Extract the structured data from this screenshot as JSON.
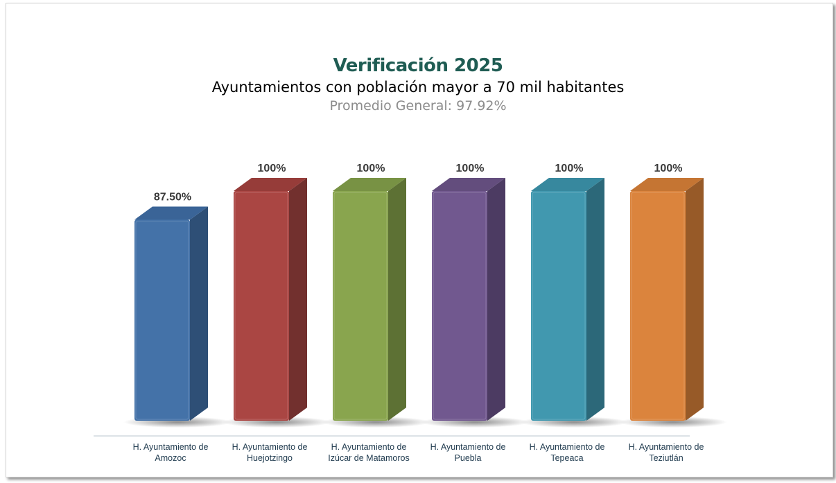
{
  "chart_data": {
    "type": "bar",
    "title": "Verificación 2025",
    "subtitle": "Ayuntamientos con población mayor a 70 mil habitantes",
    "note": "Promedio General: 97.92%",
    "categories": [
      "H. Ayuntamiento de Amozoc",
      "H. Ayuntamiento de Huejotzingo",
      "H. Ayuntamiento de Izúcar de Matamoros",
      "H. Ayuntamiento de Puebla",
      "H. Ayuntamiento de Tepeaca",
      "H. Ayuntamiento de Teziutlán"
    ],
    "category_lines": [
      [
        "H. Ayuntamiento de",
        "Amozoc"
      ],
      [
        "H. Ayuntamiento de",
        "Huejotzingo"
      ],
      [
        "H. Ayuntamiento de",
        "Izúcar de Matamoros"
      ],
      [
        "H. Ayuntamiento de",
        "Puebla"
      ],
      [
        "H. Ayuntamiento de",
        "Tepeaca"
      ],
      [
        "H. Ayuntamiento de",
        "Teziutlán"
      ]
    ],
    "values": [
      87.5,
      100,
      100,
      100,
      100,
      100
    ],
    "data_labels": [
      "87.50%",
      "100%",
      "100%",
      "100%",
      "100%",
      "100%"
    ],
    "colors": [
      "#4472a8",
      "#aa4643",
      "#89a54e",
      "#71588f",
      "#4198af",
      "#db843d"
    ],
    "side_colors": [
      "#2e4f76",
      "#72302e",
      "#5d7134",
      "#4c3b62",
      "#2c6879",
      "#975a28"
    ],
    "top_colors": [
      "#3a6497",
      "#963c39",
      "#789244",
      "#634d7d",
      "#37889e",
      "#c57533"
    ],
    "ylim": [
      0,
      100
    ],
    "gridlines": false,
    "legend": "none"
  }
}
